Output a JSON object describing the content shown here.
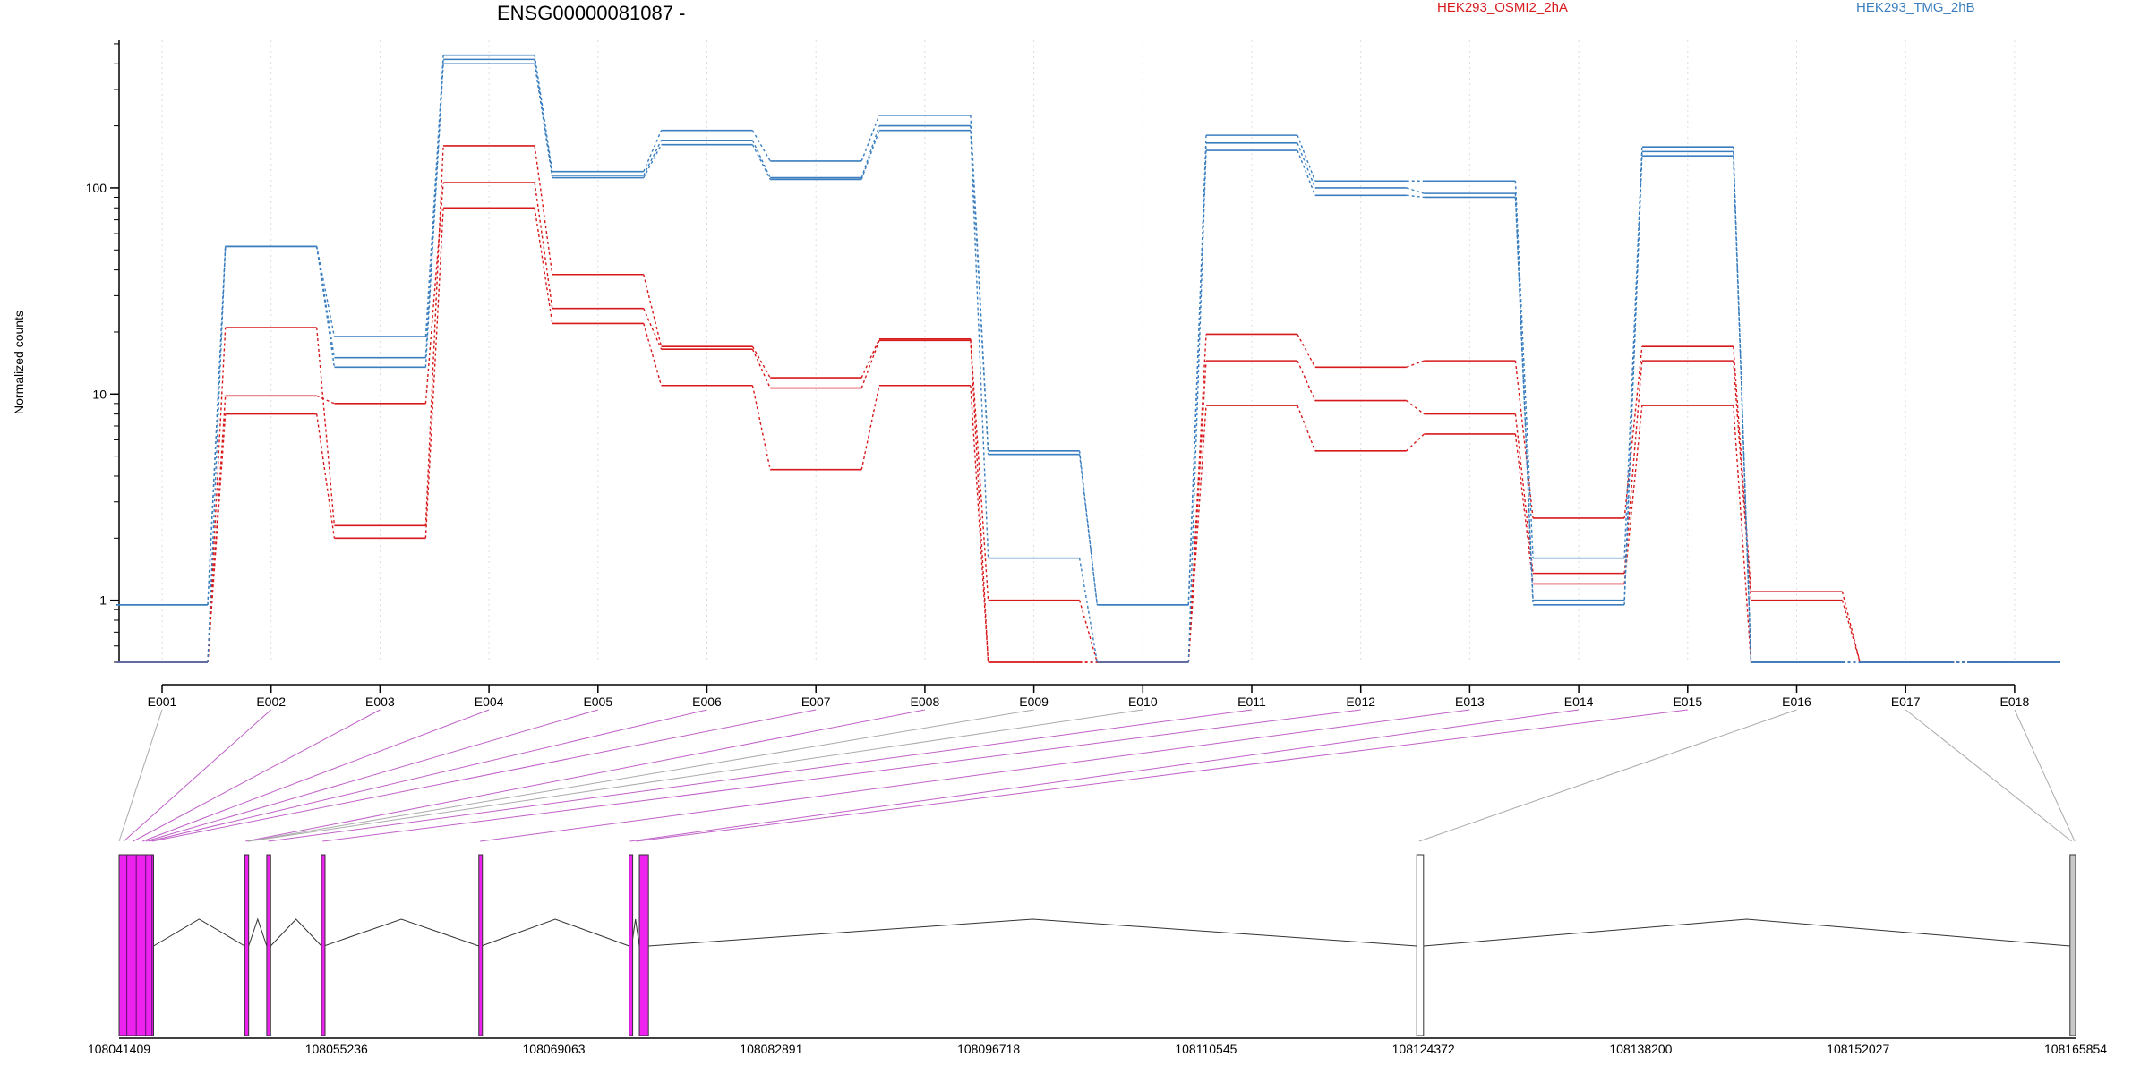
{
  "chart_data": {
    "type": "line",
    "title": "ENSG00000081087 -",
    "ylabel": "Normalized counts",
    "yscale": "log",
    "ylim": [
      0.5,
      520
    ],
    "y_ticks": [
      {
        "value": 1,
        "label": "1"
      },
      {
        "value": 10,
        "label": "10"
      },
      {
        "value": 100,
        "label": "100"
      }
    ],
    "legend_placement": "top",
    "grid": "vertical dotted",
    "categories": [
      "E001",
      "E002",
      "E003",
      "E004",
      "E005",
      "E006",
      "E007",
      "E008",
      "E009",
      "E010",
      "E011",
      "E012",
      "E013",
      "E014",
      "E015",
      "E016",
      "E017",
      "E018"
    ],
    "series": [
      {
        "name": "HEK293_OSMI2_2hA",
        "group": "HEK293_OSMI2_2hA",
        "color": "#d7191c",
        "values": [
          0.5,
          21,
          2.3,
          160,
          38,
          17,
          12,
          18.5,
          1.0,
          0.5,
          19.5,
          13.5,
          14.5,
          2.5,
          17,
          1.1,
          0.5,
          0.5
        ]
      },
      {
        "name": "",
        "group": "HEK293_OSMI2_2hA",
        "color": "#d7191c",
        "values": [
          0.5,
          9.8,
          9.0,
          106,
          26,
          16.5,
          10.7,
          18.2,
          0.5,
          0.5,
          14.5,
          9.3,
          8.0,
          1.35,
          14.5,
          1.0,
          0.5,
          0.5
        ]
      },
      {
        "name": "",
        "group": "HEK293_OSMI2_2hA",
        "color": "#d7191c",
        "values": [
          0.5,
          8.0,
          2.0,
          80,
          22,
          11,
          4.3,
          11,
          0.5,
          0.5,
          8.8,
          5.3,
          6.4,
          1.2,
          8.8,
          0.5,
          0.5,
          0.5
        ]
      },
      {
        "name": "HEK293_TMG_2hB",
        "group": "HEK293_TMG_2hB",
        "color": "#3a7ebf",
        "values": [
          0.95,
          52,
          19,
          440,
          120,
          190,
          135,
          225,
          5.3,
          0.95,
          180,
          108,
          108,
          1.6,
          158,
          0.5,
          0.5,
          0.5
        ]
      },
      {
        "name": "",
        "group": "HEK293_TMG_2hB",
        "color": "#3a7ebf",
        "values": [
          0.95,
          52,
          15,
          420,
          115,
          170,
          112,
          200,
          5.1,
          0.95,
          165,
          100,
          94,
          1.0,
          150,
          0.5,
          0.5,
          0.5
        ]
      },
      {
        "name": "",
        "group": "HEK293_TMG_2hB",
        "color": "#3a7ebf",
        "values": [
          0.5,
          52,
          13.5,
          400,
          112,
          162,
          110,
          190,
          1.6,
          0.5,
          152,
          92,
          90,
          0.95,
          143,
          0.5,
          0.5,
          0.5
        ]
      }
    ],
    "legend": [
      {
        "label": "HEK293_OSMI2_2hA",
        "color": "#d7191c"
      },
      {
        "label": "HEK293_TMG_2hB",
        "color": "#3a7ebf"
      }
    ],
    "gene_model": {
      "coordinate_labels": [
        "108041409",
        "108055236",
        "108069063",
        "108082891",
        "108096718",
        "108110545",
        "108124372",
        "108138200",
        "108152027",
        "108165854"
      ],
      "coord_start": 108041409,
      "coord_end": 108165854,
      "highlight_color": "#ee22ee",
      "exons": [
        {
          "start": 108041409,
          "end": 108043602,
          "fill": "#ee22ee"
        },
        {
          "start": 108049400,
          "end": 108049650,
          "fill": "#ee22ee"
        },
        {
          "start": 108050800,
          "end": 108051050,
          "fill": "#ee22ee"
        },
        {
          "start": 108054280,
          "end": 108054440,
          "fill": "#ee22ee"
        },
        {
          "start": 108064290,
          "end": 108064450,
          "fill": "#ee22ee"
        },
        {
          "start": 108073850,
          "end": 108074010,
          "fill": "#ee22ee"
        },
        {
          "start": 108074500,
          "end": 108075080,
          "fill": "#ee22ee"
        },
        {
          "start": 108123950,
          "end": 108124380,
          "fill": "#ffffff"
        },
        {
          "start": 108165500,
          "end": 108165854,
          "fill": "#c8c8c8"
        }
      ],
      "introns": [
        [
          108043602,
          108049400
        ],
        [
          108049650,
          108050800
        ],
        [
          108051050,
          108054280
        ],
        [
          108054440,
          108064290
        ],
        [
          108064450,
          108073850
        ],
        [
          108074010,
          108074500
        ],
        [
          108075080,
          108123950
        ],
        [
          108124380,
          108165500
        ]
      ],
      "connectors": [
        {
          "exon": 1,
          "coord": 108041409,
          "color": "#aaaaaa"
        },
        {
          "exon": 2,
          "coord": 108041700,
          "color": "#c060c8"
        },
        {
          "exon": 3,
          "coord": 108042300,
          "color": "#c060c8"
        },
        {
          "exon": 4,
          "coord": 108042900,
          "color": "#c060c8"
        },
        {
          "exon": 5,
          "coord": 108043100,
          "color": "#c060c8"
        },
        {
          "exon": 6,
          "coord": 108043300,
          "color": "#c060c8"
        },
        {
          "exon": 7,
          "coord": 108043500,
          "color": "#c060c8"
        },
        {
          "exon": 8,
          "coord": 108049450,
          "color": "#c060c8"
        },
        {
          "exon": 9,
          "coord": 108049600,
          "color": "#aaaaaa"
        },
        {
          "exon": 10,
          "coord": 108049650,
          "color": "#aaaaaa"
        },
        {
          "exon": 11,
          "coord": 108050900,
          "color": "#c060c8"
        },
        {
          "exon": 12,
          "coord": 108054350,
          "color": "#c060c8"
        },
        {
          "exon": 13,
          "coord": 108064370,
          "color": "#c060c8"
        },
        {
          "exon": 14,
          "coord": 108073900,
          "color": "#c060c8"
        },
        {
          "exon": 15,
          "coord": 108074300,
          "color": "#c060c8"
        },
        {
          "exon": 16,
          "coord": 108124100,
          "color": "#aaaaaa"
        },
        {
          "exon": 17,
          "coord": 108165600,
          "color": "#aaaaaa"
        },
        {
          "exon": 18,
          "coord": 108165800,
          "color": "#aaaaaa"
        }
      ]
    }
  }
}
